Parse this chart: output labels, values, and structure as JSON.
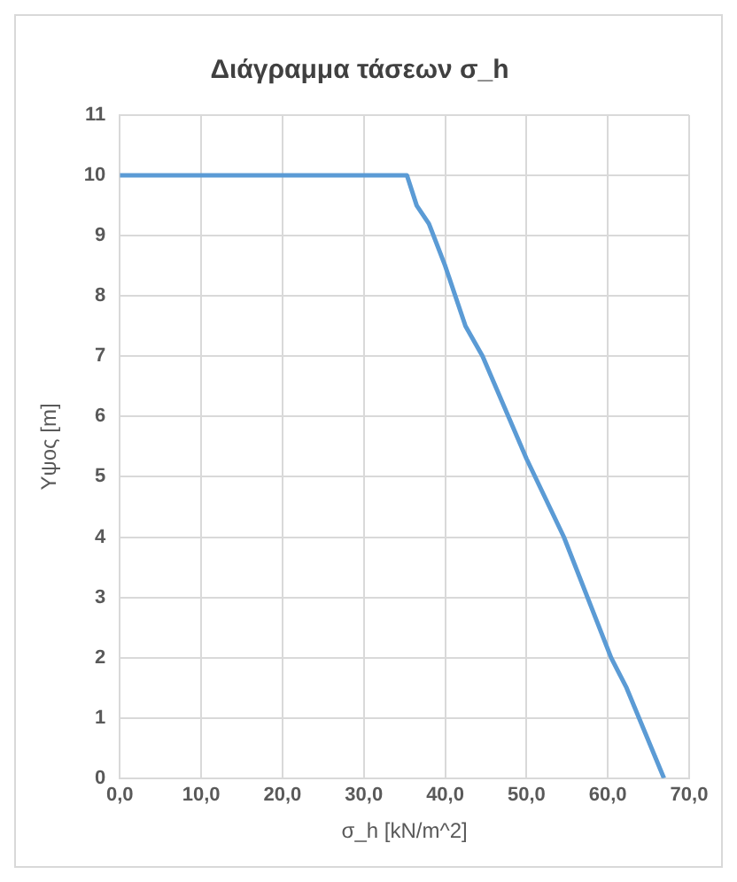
{
  "chart_data": {
    "type": "line",
    "title": "Διάγραμμα τάσεων σ_h",
    "xlabel": "σ_h [kN/m^2]",
    "ylabel": "Υψος [m]",
    "x": [
      0,
      35.3,
      36.5,
      38,
      40,
      42.5,
      44.6,
      50,
      54.6,
      60.4,
      62.3,
      66.9
    ],
    "series": [
      {
        "color": "#5b9bd5",
        "values": [
          10,
          10,
          9.5,
          9.2,
          8.5,
          7.5,
          7,
          5.3,
          4,
          2,
          1.5,
          0
        ]
      }
    ],
    "xlim": [
      0,
      70
    ],
    "ylim": [
      0,
      11
    ],
    "xticks": [
      {
        "value": 0,
        "label": "0,0"
      },
      {
        "value": 10,
        "label": "10,0"
      },
      {
        "value": 20,
        "label": "20,0"
      },
      {
        "value": 30,
        "label": "30,0"
      },
      {
        "value": 40,
        "label": "40,0"
      },
      {
        "value": 50,
        "label": "50,0"
      },
      {
        "value": 60,
        "label": "60,0"
      },
      {
        "value": 70,
        "label": "70,0"
      }
    ],
    "yticks": [
      0,
      1,
      2,
      3,
      4,
      5,
      6,
      7,
      8,
      9,
      10,
      11
    ],
    "grid": true,
    "legend": false,
    "marker": "none",
    "line_style": "solid"
  }
}
